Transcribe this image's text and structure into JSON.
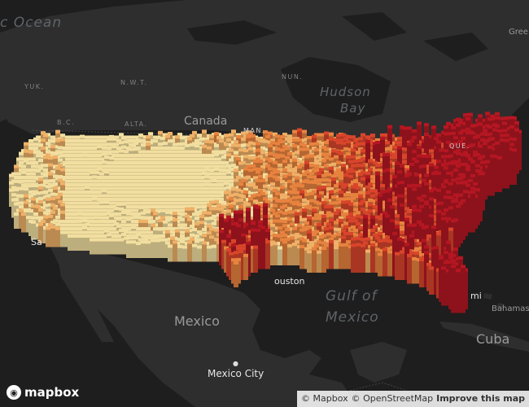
{
  "map": {
    "style": "dark",
    "layer": "3D hexagon column density",
    "ramp_colors": [
      "#f2dfa0",
      "#f0b168",
      "#e8833f",
      "#d9452b",
      "#b51722"
    ]
  },
  "labels": {
    "ocean_arctic": "c Ocean",
    "hudson_bay_1": "Hudson",
    "hudson_bay_2": "Bay",
    "gulf_1": "Gulf of",
    "gulf_2": "Mexico",
    "yuk": "YUK.",
    "nwt": "N.W.T.",
    "nun": "NUN.",
    "bc": "B.C.",
    "alta": "ALTA.",
    "man": "MAN.",
    "que": "QUE.",
    "canada": "Canada",
    "mexico": "Mexico",
    "cuba": "Cuba",
    "bahamas": "Bahamas",
    "green": "Gree",
    "mexico_city": "Mexico City",
    "houston": "ouston",
    "miami": "mi",
    "sa": "Sa"
  },
  "logo": {
    "text": "mapbox",
    "icon": "mapbox-logo-icon"
  },
  "attribution": {
    "mapbox": "© Mapbox",
    "osm": "© OpenStreetMap",
    "improve": "Improve this map"
  }
}
